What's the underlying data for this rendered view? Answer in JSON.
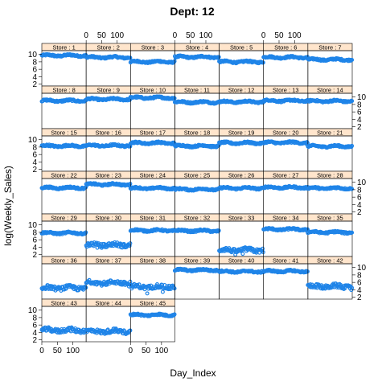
{
  "chart_data": {
    "type": "scatter",
    "title": "Dept: 12",
    "xlabel": "Day_Index",
    "ylabel": "log(Weekly_Sales)",
    "xlim": [
      0,
      143
    ],
    "ylim": [
      1.5,
      11
    ],
    "x_ticks": [
      "0",
      "50",
      "100"
    ],
    "x_tick_values": [
      0,
      50,
      100
    ],
    "y_ticks": [
      "2",
      "4",
      "6",
      "8",
      "10"
    ],
    "y_tick_values": [
      2,
      4,
      6,
      8,
      10
    ],
    "layout": {
      "columns": 7,
      "rows": 7
    },
    "strip_color": "#ffe5cc",
    "point_color": "#1f84e8",
    "panels": [
      {
        "label": "Store : 1",
        "level": 9.7
      },
      {
        "label": "Store : 2",
        "level": 9.2
      },
      {
        "label": "Store : 3",
        "level": 8.0
      },
      {
        "label": "Store : 4",
        "level": 9.3
      },
      {
        "label": "Store : 5",
        "level": 8.0
      },
      {
        "label": "Store : 6",
        "level": 9.2
      },
      {
        "label": "Store : 7",
        "level": 8.6
      },
      {
        "label": "Store : 8",
        "level": 9.0
      },
      {
        "label": "Store : 9",
        "level": 9.4
      },
      {
        "label": "Store : 10",
        "level": 9.8
      },
      {
        "label": "Store : 11",
        "level": 8.6
      },
      {
        "label": "Store : 12",
        "level": 8.7
      },
      {
        "label": "Store : 13",
        "level": 9.0
      },
      {
        "label": "Store : 14",
        "level": 8.9
      },
      {
        "label": "Store : 15",
        "level": 8.3
      },
      {
        "label": "Store : 16",
        "level": 8.4
      },
      {
        "label": "Store : 17",
        "level": 9.1
      },
      {
        "label": "Store : 18",
        "level": 8.3
      },
      {
        "label": "Store : 19",
        "level": 9.1
      },
      {
        "label": "Store : 20",
        "level": 9.2
      },
      {
        "label": "Store : 21",
        "level": 8.2
      },
      {
        "label": "Store : 22",
        "level": 8.5
      },
      {
        "label": "Store : 23",
        "level": 9.4
      },
      {
        "label": "Store : 24",
        "level": 8.4
      },
      {
        "label": "Store : 25",
        "level": 8.1
      },
      {
        "label": "Store : 26",
        "level": 8.4
      },
      {
        "label": "Store : 27",
        "level": 8.6
      },
      {
        "label": "Store : 28",
        "level": 8.4
      },
      {
        "label": "Store : 29",
        "level": 7.8
      },
      {
        "label": "Store : 30",
        "level": 4.6
      },
      {
        "label": "Store : 31",
        "level": 8.5
      },
      {
        "label": "Store : 32",
        "level": 8.4
      },
      {
        "label": "Store : 33",
        "level": 3.2
      },
      {
        "label": "Store : 34",
        "level": 8.8
      },
      {
        "label": "Store : 35",
        "level": 8.0
      },
      {
        "label": "Store : 36",
        "level": 4.5
      },
      {
        "label": "Store : 37",
        "level": 5.9
      },
      {
        "label": "Store : 38",
        "level": 4.8
      },
      {
        "label": "Store : 39",
        "level": 9.3
      },
      {
        "label": "Store : 40",
        "level": 8.9
      },
      {
        "label": "Store : 41",
        "level": 9.0
      },
      {
        "label": "Store : 42",
        "level": 4.9
      },
      {
        "label": "Store : 43",
        "level": 4.6
      },
      {
        "label": "Store : 44",
        "level": 4.3
      },
      {
        "label": "Store : 45",
        "level": 8.7
      }
    ]
  }
}
